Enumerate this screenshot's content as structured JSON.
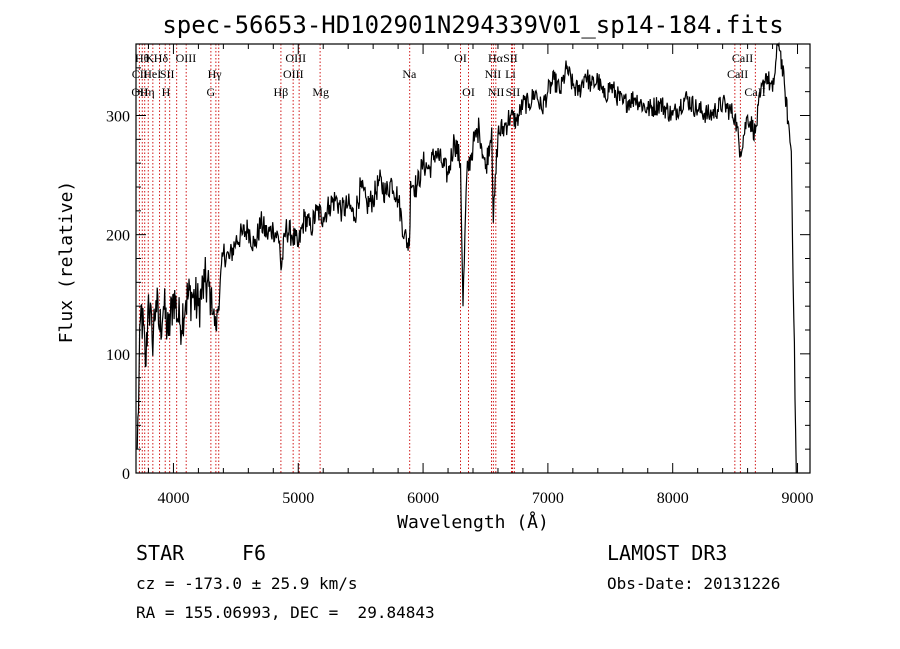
{
  "chart_data": {
    "type": "line",
    "title": "spec-56653-HD102901N294339V01_sp14-184.fits",
    "xlabel": "Wavelength (Å)",
    "ylabel": "Flux (relative)",
    "xlim": [
      3700,
      9100
    ],
    "ylim": [
      0,
      360
    ],
    "xticks": [
      4000,
      5000,
      6000,
      7000,
      8000,
      9000
    ],
    "yticks": [
      0,
      100,
      200,
      300
    ],
    "series": [
      {
        "name": "spectrum",
        "x": [
          3710,
          3740,
          3780,
          3800,
          3830,
          3860,
          3890,
          3920,
          3960,
          4000,
          4050,
          4100,
          4150,
          4200,
          4250,
          4300,
          4340,
          4400,
          4450,
          4500,
          4550,
          4600,
          4650,
          4700,
          4750,
          4800,
          4850,
          4862,
          4900,
          4950,
          5000,
          5050,
          5100,
          5150,
          5200,
          5250,
          5300,
          5350,
          5400,
          5450,
          5500,
          5550,
          5600,
          5650,
          5700,
          5750,
          5800,
          5850,
          5890,
          5900,
          5950,
          6000,
          6050,
          6100,
          6150,
          6200,
          6250,
          6300,
          6320,
          6350,
          6400,
          6450,
          6500,
          6550,
          6563,
          6600,
          6650,
          6700,
          6750,
          6800,
          6850,
          6900,
          6950,
          7000,
          7050,
          7100,
          7150,
          7200,
          7250,
          7300,
          7350,
          7400,
          7450,
          7500,
          7600,
          7700,
          7800,
          7900,
          8000,
          8100,
          8200,
          8300,
          8400,
          8498,
          8542,
          8600,
          8662,
          8700,
          8750,
          8800,
          8850,
          8900,
          8950,
          8990
        ],
        "y": [
          20,
          140,
          90,
          150,
          110,
          145,
          120,
          140,
          115,
          150,
          125,
          145,
          150,
          140,
          160,
          150,
          120,
          185,
          180,
          195,
          200,
          205,
          190,
          210,
          200,
          205,
          195,
          170,
          205,
          200,
          190,
          215,
          205,
          220,
          215,
          225,
          230,
          220,
          225,
          215,
          240,
          225,
          230,
          245,
          235,
          245,
          230,
          200,
          190,
          245,
          240,
          260,
          255,
          270,
          260,
          250,
          280,
          260,
          140,
          250,
          275,
          290,
          255,
          290,
          210,
          285,
          290,
          300,
          295,
          310,
          310,
          320,
          305,
          320,
          330,
          320,
          340,
          325,
          320,
          335,
          325,
          330,
          315,
          325,
          310,
          315,
          305,
          310,
          300,
          315,
          305,
          300,
          310,
          300,
          270,
          300,
          285,
          315,
          335,
          320,
          365,
          320,
          270,
          0
        ]
      }
    ],
    "line_labels": [
      {
        "wavelength": 3750,
        "row": 1,
        "text": "Hθ"
      },
      {
        "wavelength": 3810,
        "row": 1,
        "text": "K"
      },
      {
        "wavelength": 3900,
        "row": 1,
        "text": "Hδ"
      },
      {
        "wavelength": 4100,
        "row": 1,
        "text": "OIII"
      },
      {
        "wavelength": 4980,
        "row": 1,
        "text": "OIII"
      },
      {
        "wavelength": 6300,
        "row": 1,
        "text": "OI"
      },
      {
        "wavelength": 6580,
        "row": 1,
        "text": "Hα"
      },
      {
        "wavelength": 6700,
        "row": 1,
        "text": "SII"
      },
      {
        "wavelength": 8560,
        "row": 1,
        "text": "CaII"
      },
      {
        "wavelength": 3730,
        "row": 2,
        "text": "CII"
      },
      {
        "wavelength": 3830,
        "row": 2,
        "text": "HeI"
      },
      {
        "wavelength": 3950,
        "row": 2,
        "text": "SII"
      },
      {
        "wavelength": 4330,
        "row": 2,
        "text": "Hγ"
      },
      {
        "wavelength": 4960,
        "row": 2,
        "text": "OIII"
      },
      {
        "wavelength": 5890,
        "row": 2,
        "text": "Na"
      },
      {
        "wavelength": 6560,
        "row": 2,
        "text": "NII"
      },
      {
        "wavelength": 6700,
        "row": 2,
        "text": "Li"
      },
      {
        "wavelength": 8520,
        "row": 2,
        "text": "CaII"
      },
      {
        "wavelength": 3730,
        "row": 3,
        "text": "OII"
      },
      {
        "wavelength": 3790,
        "row": 3,
        "text": "Hη"
      },
      {
        "wavelength": 3940,
        "row": 3,
        "text": "H"
      },
      {
        "wavelength": 4300,
        "row": 3,
        "text": "G"
      },
      {
        "wavelength": 4861,
        "row": 3,
        "text": "Hβ"
      },
      {
        "wavelength": 5180,
        "row": 3,
        "text": "Mg"
      },
      {
        "wavelength": 6364,
        "row": 3,
        "text": "OI"
      },
      {
        "wavelength": 6585,
        "row": 3,
        "text": "NII"
      },
      {
        "wavelength": 6720,
        "row": 3,
        "text": "SII"
      },
      {
        "wavelength": 8660,
        "row": 3,
        "text": "CaII"
      }
    ],
    "line_markers": [
      3727,
      3750,
      3770,
      3798,
      3835,
      3889,
      3934,
      3970,
      4026,
      4102,
      4300,
      4340,
      4363,
      4861,
      4959,
      5007,
      5175,
      5893,
      6300,
      6364,
      6548,
      6563,
      6583,
      6708,
      6717,
      6731,
      8498,
      8542,
      8662
    ]
  },
  "info": {
    "object_type": "STAR",
    "subclass": "F6",
    "survey": "LAMOST DR3",
    "cz": "cz = -173.0 ± 25.9 km/s",
    "obs_date": "Obs-Date: 20131226",
    "coords": "RA = 155.06993, DEC =  29.84843"
  },
  "colors": {
    "marker_lines": "#cc0000",
    "spectrum": "#000000"
  }
}
